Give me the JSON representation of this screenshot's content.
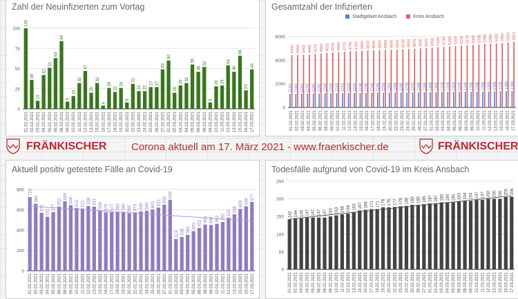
{
  "banner": {
    "brand_left": "FRÄNKISCHER",
    "brand_right": "FRÄNKISCHER",
    "headline": "Corona aktuell am 17. März 2021 - www.fraenkischer.de"
  },
  "dates": [
    "01.02.2021",
    "02.02.2021",
    "03.02.2021",
    "04.02.2021",
    "05.02.2021",
    "06.02.2021",
    "08.02.2021",
    "09.02.2021",
    "10.02.2021",
    "11.02.2021",
    "12.02.2021",
    "13.02.2021",
    "15.02.2021",
    "16.02.2021",
    "17.02.2021",
    "18.02.2021",
    "19.02.2021",
    "20.02.2021",
    "22.02.2021",
    "23.02.2021",
    "24.02.2021",
    "25.02.2021",
    "26.02.2021",
    "27.02.2021",
    "01.03.2021",
    "02.03.2021",
    "03.03.2021",
    "04.03.2021",
    "05.03.2021",
    "06.03.2021",
    "08.03.2021",
    "09.03.2021",
    "10.03.2021",
    "11.03.2021",
    "12.03.2021",
    "13.03.2021",
    "15.03.2021",
    "16.03.2021",
    "17.03.2021"
  ],
  "chart_data": [
    {
      "type": "bar",
      "title": "Zahl der Neuinfizierten zum Vortag",
      "ylim": [
        0,
        100
      ],
      "yticks": [
        0,
        25,
        50,
        75,
        100
      ],
      "grid": true,
      "color": "#38761d",
      "series": [
        {
          "name": "Neuinfizierte",
          "values": [
            100,
            36,
            10,
            42,
            51,
            63,
            84,
            9,
            16,
            32,
            47,
            20,
            32,
            4,
            26,
            21,
            26,
            8,
            31,
            22,
            22,
            27,
            27,
            49,
            60,
            20,
            29,
            32,
            55,
            46,
            52,
            8,
            28,
            29,
            54,
            46,
            66,
            23,
            49
          ]
        }
      ]
    },
    {
      "type": "bar",
      "title": "Gesamtzahl der Infizierten",
      "ylim": [
        0,
        6000
      ],
      "yticks": [
        0,
        2000,
        4000,
        6000
      ],
      "grid": true,
      "legend": "top",
      "series": [
        {
          "name": "Stadtgebiet Ansbach",
          "color": "#4a86e8",
          "values": [
            1150,
            1160,
            1165,
            1170,
            1180,
            1190,
            1200,
            1205,
            1210,
            1215,
            1220,
            1225,
            1230,
            1235,
            1240,
            1245,
            1250,
            1255,
            1260,
            1265,
            1270,
            1275,
            1280,
            1290,
            1300,
            1305,
            1310,
            1315,
            1320,
            1325,
            1330,
            1335,
            1340,
            1350,
            1355,
            1365,
            1375,
            1385,
            1394
          ]
        },
        {
          "name": "Kreis Ansbach",
          "color": "#e06060",
          "values": [
            4430,
            4450,
            4460,
            4480,
            4520,
            4560,
            4620,
            4650,
            4680,
            4710,
            4740,
            4760,
            4800,
            4820,
            4840,
            4860,
            4880,
            4890,
            4910,
            4930,
            4950,
            4970,
            5000,
            5020,
            5060,
            5100,
            5130,
            5160,
            5200,
            5230,
            5270,
            5300,
            5330,
            5360,
            5380,
            5420,
            5460,
            5510,
            5571
          ]
        }
      ]
    },
    {
      "type": "bar",
      "title": "Aktuell positiv getestete Fälle an Covid-19",
      "ylim": [
        0,
        800
      ],
      "yticks": [
        0,
        200,
        400,
        600,
        800
      ],
      "grid": true,
      "color": "#8e7cc3",
      "trendline": true,
      "series": [
        {
          "name": "Aktuell positiv",
          "values": [
            726,
            660,
            571,
            531,
            577,
            632,
            684,
            646,
            619,
            612,
            638,
            631,
            596,
            575,
            577,
            580,
            580,
            565,
            575,
            585,
            590,
            603,
            622,
            650,
            699,
            313,
            333,
            354,
            390,
            422,
            455,
            450,
            462,
            480,
            522,
            556,
            608,
            634,
            677
          ]
        }
      ]
    },
    {
      "type": "bar",
      "title": "Todesfälle aufgrund von Covid-19 im Kreis Ansbach",
      "ylim": [
        0,
        250
      ],
      "yticks": [
        0,
        50,
        100,
        150,
        200,
        250
      ],
      "grid": true,
      "color": "#434343",
      "trendline": true,
      "series": [
        {
          "name": "Todesfälle",
          "values": [
            142,
            144,
            145,
            147,
            147,
            147,
            147,
            150,
            153,
            156,
            158,
            163,
            167,
            169,
            171,
            171,
            176,
            176,
            177,
            179,
            180,
            183,
            183,
            185,
            187,
            187,
            190,
            190,
            190,
            193,
            194,
            194,
            197,
            197,
            200,
            200,
            200,
            205,
            206
          ]
        }
      ]
    }
  ]
}
